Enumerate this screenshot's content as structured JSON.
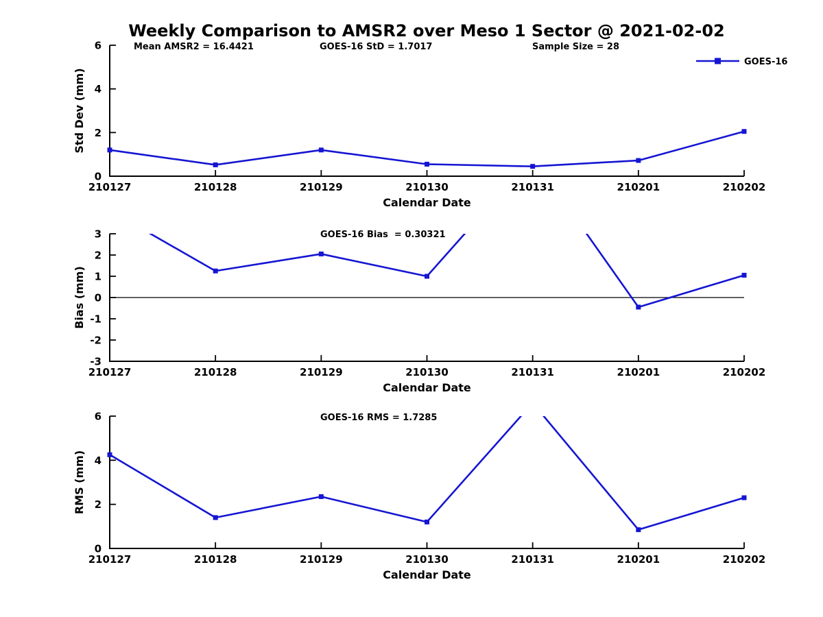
{
  "figure": {
    "title": "Weekly Comparison to AMSR2 over Meso 1 Sector @ 2021-02-02",
    "legend_label": "GOES-16",
    "colors": {
      "series": "#1515d3",
      "axis": "#000000",
      "text": "#000000",
      "background": "#ffffff"
    }
  },
  "chart_data": [
    {
      "type": "line",
      "name": "std-dev",
      "ylabel": "Std Dev (mm)",
      "xlabel": "Calendar Date",
      "ylim": [
        0,
        6
      ],
      "yticks": [
        0,
        2,
        4,
        6
      ],
      "categories": [
        "210127",
        "210128",
        "210129",
        "210130",
        "210131",
        "210201",
        "210202"
      ],
      "series": [
        {
          "name": "GOES-16",
          "values": [
            1.2,
            0.52,
            1.2,
            0.55,
            0.45,
            0.72,
            2.05
          ]
        }
      ],
      "annotations": [
        "Mean AMSR2 = 16.4421",
        "GOES-16 StD = 1.7017",
        "Sample Size = 28"
      ],
      "legend_position": "top-right",
      "grid": false,
      "zero_line": false
    },
    {
      "type": "line",
      "name": "bias",
      "ylabel": "Bias (mm)",
      "xlabel": "Calendar Date",
      "ylim": [
        -3,
        3
      ],
      "yticks": [
        -3,
        -2,
        -1,
        0,
        1,
        2,
        3
      ],
      "categories": [
        "210127",
        "210128",
        "210129",
        "210130",
        "210131",
        "210201",
        "210202"
      ],
      "series": [
        {
          "name": "GOES-16",
          "values": [
            4.1,
            1.25,
            2.05,
            1.0,
            6.6,
            -0.45,
            1.05
          ]
        }
      ],
      "annotations": [
        "GOES-16 Bias  = 0.30321"
      ],
      "grid": false,
      "zero_line": true
    },
    {
      "type": "line",
      "name": "rms",
      "ylabel": "RMS (mm)",
      "xlabel": "Calendar Date",
      "ylim": [
        0,
        6
      ],
      "yticks": [
        0,
        2,
        4,
        6
      ],
      "categories": [
        "210127",
        "210128",
        "210129",
        "210130",
        "210131",
        "210201",
        "210202"
      ],
      "series": [
        {
          "name": "GOES-16",
          "values": [
            4.25,
            1.4,
            2.35,
            1.2,
            6.6,
            0.85,
            2.3
          ]
        }
      ],
      "annotations": [
        "GOES-16 RMS = 1.7285"
      ],
      "grid": false,
      "zero_line": false
    }
  ]
}
